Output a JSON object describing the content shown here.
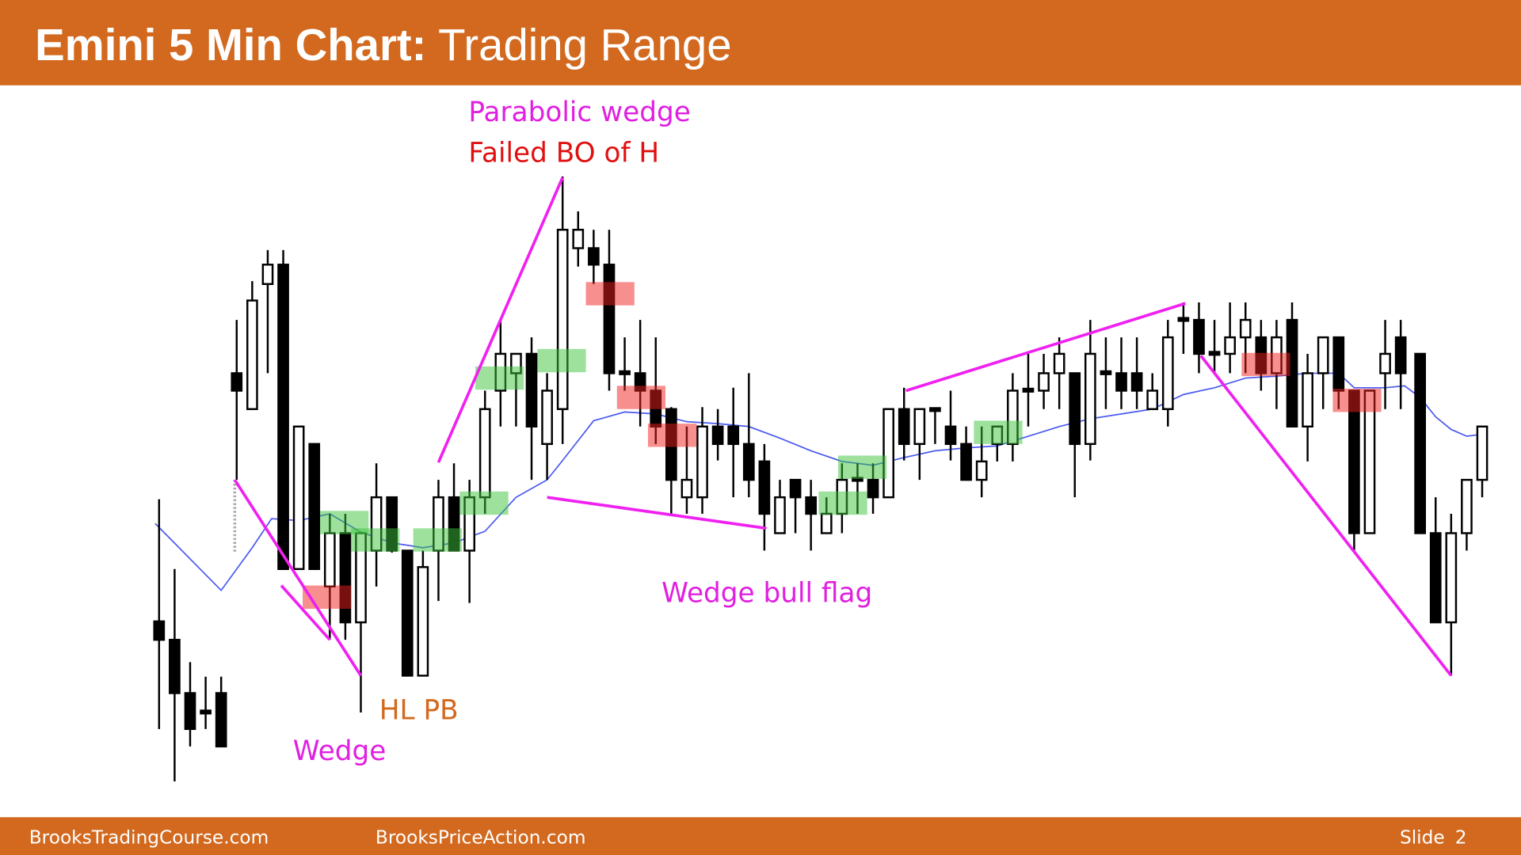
{
  "header": {
    "title_bold": "Emini 5 Min Chart:",
    "title_rest": "Trading Range"
  },
  "annotations": {
    "parabolic_wedge": "Parabolic wedge",
    "failed_bo": "Failed BO of H",
    "wedge_bull_flag": "Wedge bull flag",
    "hl_pb": "HL PB",
    "wedge": "Wedge"
  },
  "footer": {
    "site1": "BrooksTradingCourse.com",
    "site2": "BrooksPriceAction.com",
    "slide_label": "Slide",
    "slide_number": "2"
  }
}
